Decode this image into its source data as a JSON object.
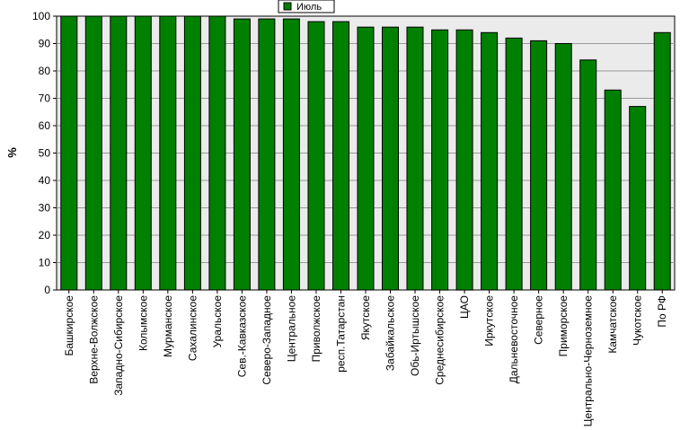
{
  "chart_data": {
    "type": "bar",
    "ylabel": "%",
    "ylim": [
      0,
      100
    ],
    "yticks": [
      0,
      10,
      20,
      30,
      40,
      50,
      60,
      70,
      80,
      90,
      100
    ],
    "grid": true,
    "legend_position": "top-center",
    "colors": {
      "bar": "#008000",
      "plot_bg": "#ebebeb"
    },
    "categories": [
      "Башкирское",
      "Верхне-Волжское",
      "Западно-Сибирское",
      "Колымское",
      "Мурманское",
      "Сахалинское",
      "Уральское",
      "Сев.-Кавказское",
      "Северо-Западное",
      "Центральное",
      "Приволжское",
      "респ.Татарстан",
      "Якутское",
      "Забайкальское",
      "Обь-Иртышское",
      "Среднесибирское",
      "ЦАО",
      "Иркутское",
      "Дальневосточное",
      "Северное",
      "Приморское",
      "Центрально-Черноземное",
      "Камчатское",
      "Чукотское",
      "По РФ"
    ],
    "series": [
      {
        "name": "Июль",
        "values": [
          100,
          100,
          100,
          100,
          100,
          100,
          100,
          99,
          99,
          99,
          98,
          98,
          96,
          96,
          96,
          95,
          95,
          94,
          92,
          91,
          90,
          84,
          73,
          67,
          94
        ]
      }
    ]
  }
}
